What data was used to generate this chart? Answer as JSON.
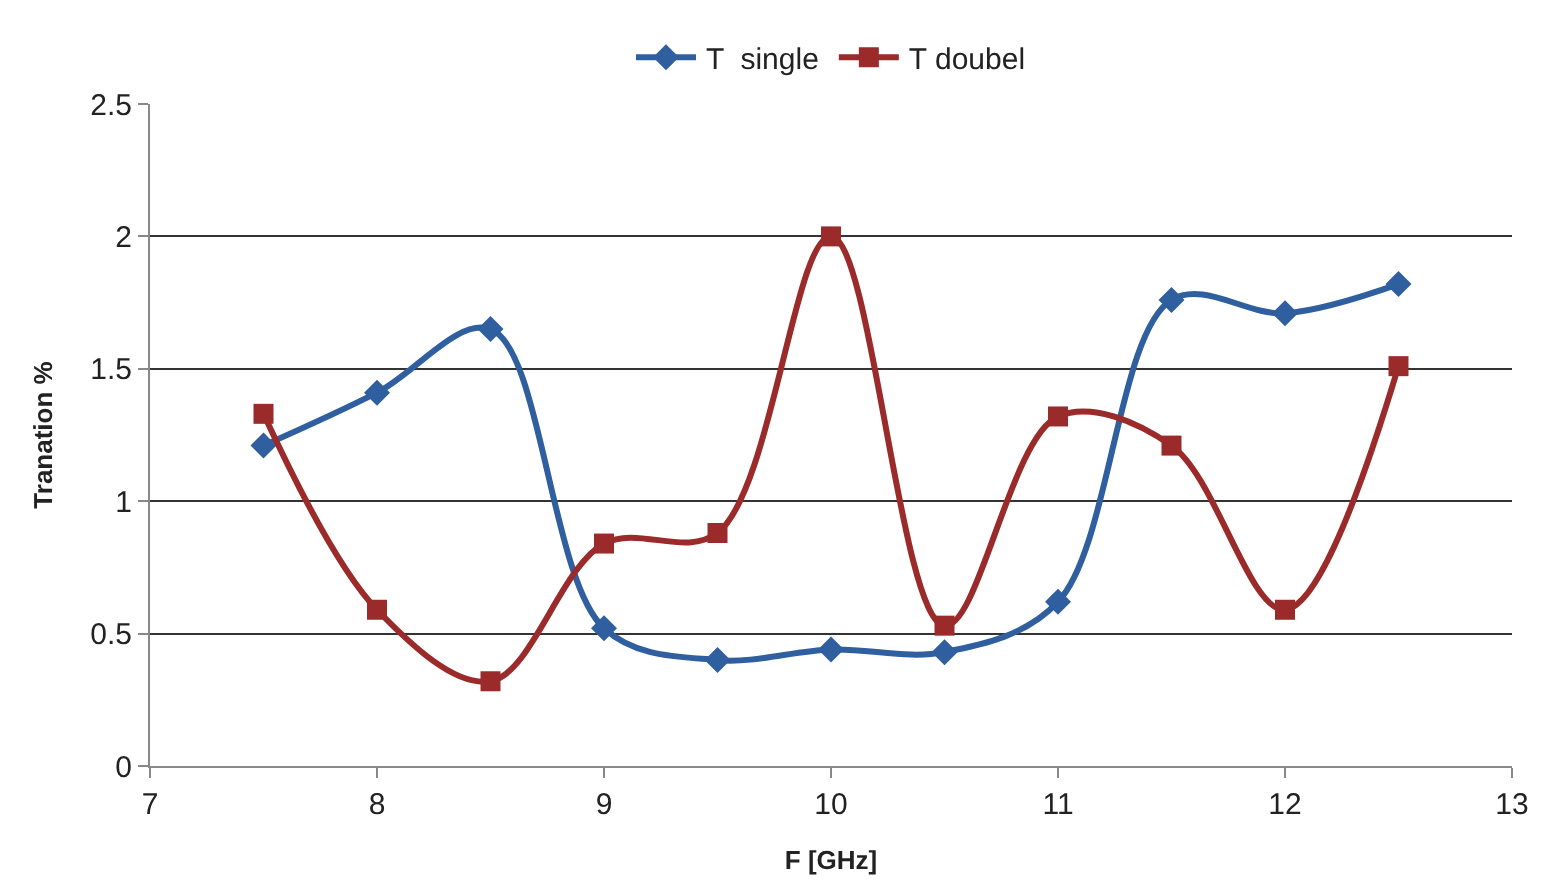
{
  "chart_data": {
    "type": "line",
    "xlabel": "F [GHz]",
    "ylabel": "Tranation %",
    "x": [
      7.5,
      8,
      8.5,
      9,
      9.5,
      10,
      10.5,
      11,
      11.5,
      12,
      12.5
    ],
    "series": [
      {
        "name": "T  single",
        "color": "#2f5f9e",
        "marker": "diamond",
        "values": [
          1.21,
          1.41,
          1.65,
          0.52,
          0.4,
          0.44,
          0.43,
          0.62,
          1.76,
          1.71,
          1.82
        ]
      },
      {
        "name": "T doubel",
        "color": "#9b2a2a",
        "marker": "square",
        "values": [
          1.33,
          0.59,
          0.32,
          0.84,
          0.88,
          2.0,
          0.53,
          1.32,
          1.21,
          0.59,
          1.51
        ]
      }
    ],
    "xlim": [
      7,
      13
    ],
    "xticks": [
      7,
      8,
      9,
      10,
      11,
      12,
      13
    ],
    "ylim": [
      0,
      2.5
    ],
    "yticks": [
      0,
      0.5,
      1,
      1.5,
      2,
      2.5
    ],
    "grid": "y",
    "legend": "top"
  }
}
